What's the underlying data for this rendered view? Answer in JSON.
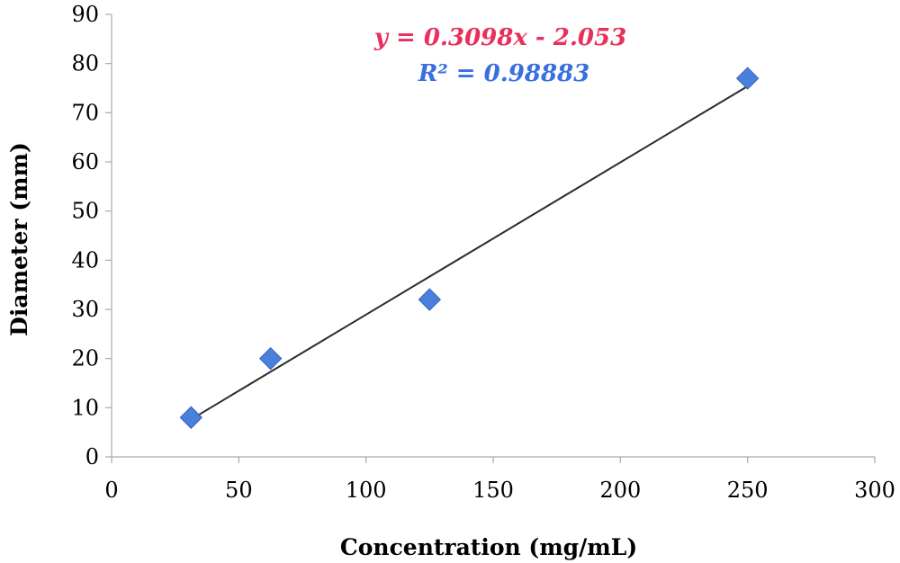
{
  "chart_data": {
    "type": "scatter",
    "title": "",
    "xlabel": "Concentration (mg/mL)",
    "ylabel": "Diameter (mm)",
    "xlim": [
      0,
      300
    ],
    "ylim": [
      0,
      90
    ],
    "xticks": [
      0,
      50,
      100,
      150,
      200,
      250,
      300
    ],
    "yticks": [
      0,
      10,
      20,
      30,
      40,
      50,
      60,
      70,
      80,
      90
    ],
    "grid": false,
    "series": [
      {
        "points": [
          {
            "x": 31.25,
            "y": 8
          },
          {
            "x": 62.5,
            "y": 20
          },
          {
            "x": 125,
            "y": 32
          },
          {
            "x": 250,
            "y": 77
          }
        ],
        "marker": "diamond",
        "color": "#4a7fdc"
      }
    ],
    "trendline": {
      "slope": 0.3098,
      "intercept": -2.053,
      "x_range": [
        31.25,
        250
      ],
      "color": "#2b2b2b",
      "equation_label": "y = 0.3098x - 2.053",
      "r2_label": "R² = 0.98883",
      "equation_color": "#e8305a",
      "r2_color": "#3a6fe0"
    }
  }
}
